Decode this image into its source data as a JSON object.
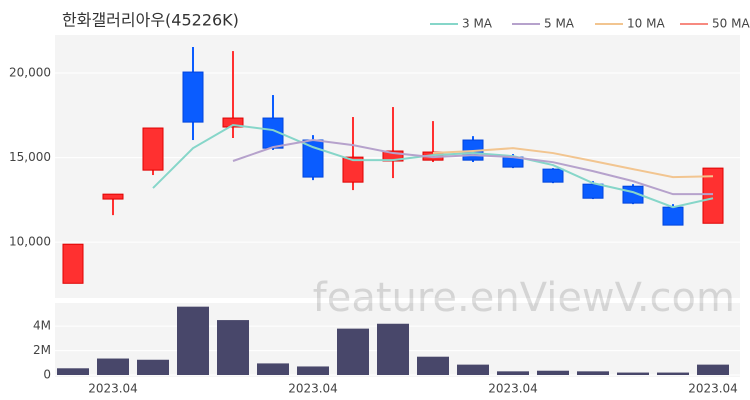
{
  "chart_data": [
    {
      "type": "candlestick",
      "title": "한화갤러리아우(45226K)",
      "watermark": "feature.enViewV.com",
      "open": [
        7570,
        12550,
        14260,
        20060,
        16810,
        17340,
        16040,
        13550,
        14800,
        14850,
        16040,
        15030,
        14320,
        13430,
        13310,
        12070,
        11120
      ],
      "high": [
        9880,
        12850,
        16750,
        21540,
        21300,
        18700,
        16330,
        17400,
        17990,
        17160,
        16270,
        15210,
        14380,
        13610,
        13430,
        12250,
        14380
      ],
      "low": [
        7570,
        11600,
        13970,
        16040,
        16160,
        15450,
        13670,
        13080,
        13790,
        14740,
        14740,
        14380,
        13490,
        12550,
        12250,
        11010,
        11120
      ],
      "close": [
        9880,
        12840,
        16750,
        17100,
        17340,
        15560,
        13850,
        15030,
        15390,
        15330,
        14850,
        14440,
        13550,
        12600,
        12310,
        11010,
        14380
      ],
      "up_color": "#ff3030",
      "down_color": "#0a5cff",
      "series": [
        {
          "name": "3 MA",
          "color": "#86d6c9",
          "values": [
            null,
            null,
            13200,
            15560,
            16930,
            16630,
            15620,
            14850,
            14850,
            15150,
            15270,
            15090,
            14560,
            13490,
            12960,
            12070,
            12600
          ]
        },
        {
          "name": "5 MA",
          "color": "#b6a2cc",
          "values": [
            null,
            null,
            null,
            null,
            14800,
            15620,
            16040,
            15740,
            15270,
            15030,
            15150,
            15030,
            14730,
            14200,
            13610,
            12840,
            12840
          ]
        },
        {
          "name": "10 MA",
          "color": "#f2c590",
          "values": [
            null,
            null,
            null,
            null,
            null,
            null,
            null,
            null,
            null,
            15270,
            15390,
            15560,
            15270,
            14800,
            14320,
            13850,
            13900
          ]
        },
        {
          "name": "50 MA",
          "color": "#f78a80",
          "values": [
            null,
            null,
            null,
            null,
            null,
            null,
            null,
            null,
            null,
            null,
            null,
            null,
            null,
            null,
            null,
            null,
            null
          ]
        }
      ],
      "ylim": [
        6700,
        22250
      ],
      "yticks": [
        {
          "value": 10000,
          "label": "10,000"
        },
        {
          "value": 15000,
          "label": "15,000"
        },
        {
          "value": 20000,
          "label": "20,000"
        }
      ],
      "grid": true
    },
    {
      "type": "bar",
      "categories": [
        null,
        "2023.04",
        null,
        null,
        null,
        null,
        "2023.04",
        null,
        null,
        null,
        null,
        "2023.04",
        null,
        null,
        null,
        null,
        "2023.04"
      ],
      "values": [
        550000,
        1350000,
        1250000,
        5600000,
        4500000,
        950000,
        700000,
        3800000,
        4200000,
        1500000,
        850000,
        300000,
        350000,
        300000,
        200000,
        200000,
        850000
      ],
      "color": "#48476a",
      "ylim": [
        0,
        5900000
      ],
      "yticks": [
        {
          "value": 0,
          "label": "0"
        },
        {
          "value": 2000000,
          "label": "2M"
        },
        {
          "value": 4000000,
          "label": "4M"
        }
      ],
      "grid": true
    }
  ]
}
